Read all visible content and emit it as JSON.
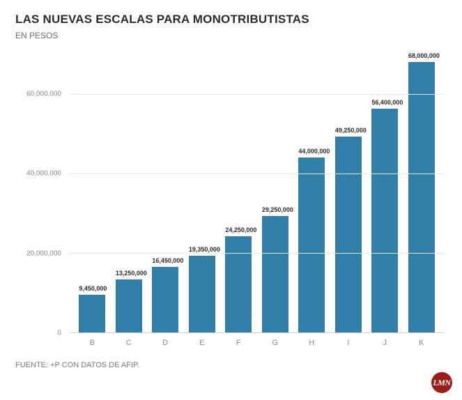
{
  "title": "LAS NUEVAS ESCALAS PARA MONOTRIBUTISTAS",
  "title_fontsize": 17,
  "subtitle": "EN PESOS",
  "subtitle_fontsize": 12,
  "chart": {
    "type": "bar",
    "categories": [
      "B",
      "C",
      "D",
      "E",
      "F",
      "G",
      "H",
      "I",
      "J",
      "K"
    ],
    "values": [
      9450000,
      13250000,
      16450000,
      19350000,
      24250000,
      29250000,
      44000000,
      49250000,
      56400000,
      68000000
    ],
    "value_labels": [
      "9,450,000",
      "13,250,000",
      "16,450,000",
      "19,350,000",
      "24,250,000",
      "29,250,000",
      "44,000,000",
      "49,250,000",
      "56,400,000",
      "68,000,000"
    ],
    "bar_color": "#2f7fa8",
    "ylim": [
      0,
      70000000
    ],
    "yticks": [
      0,
      20000000,
      40000000,
      60000000
    ],
    "ytick_labels": [
      "0",
      "20,000,000",
      "40,000,000",
      "60,000,000"
    ],
    "grid_color": "#e6e6e6",
    "axis_color": "#d0d0d0",
    "background_color": "#ffffff",
    "bar_width": 0.72,
    "value_label_fontsize": 9,
    "tick_fontsize": 10
  },
  "footer": "FUENTE: +P CON DATOS DE AFIP.",
  "logo_text": "LMN",
  "logo_bg": "#9e1b1b"
}
